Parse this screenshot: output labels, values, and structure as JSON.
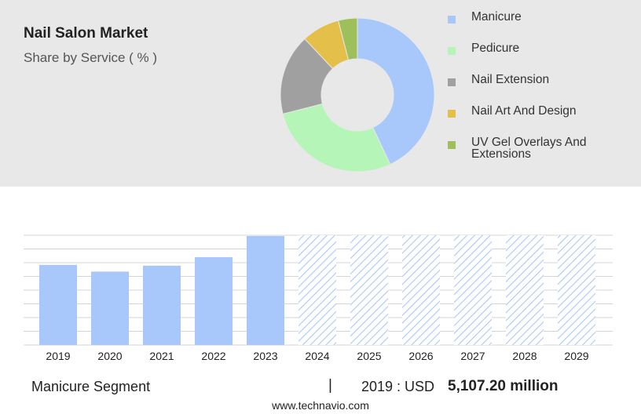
{
  "header": {
    "title": "Nail Salon Market",
    "subtitle": "Share by Service ( % )"
  },
  "chart_data": [
    {
      "type": "pie",
      "categories": [
        "Manicure",
        "Pedicure",
        "Nail Extension",
        "Nail Art And Design",
        "UV Gel Overlays And Extensions"
      ],
      "values": [
        43,
        28,
        17,
        8,
        4
      ],
      "colors": [
        "#a8c8fb",
        "#b6f5b8",
        "#a0a0a0",
        "#e4c04a",
        "#9ec05a"
      ],
      "legend_position": "right"
    },
    {
      "type": "bar",
      "categories": [
        "2019",
        "2020",
        "2021",
        "2022",
        "2023",
        "2024",
        "2025",
        "2026",
        "2027",
        "2028",
        "2029"
      ],
      "values": [
        5107.2,
        4680,
        5060,
        5600,
        6950,
        null,
        null,
        null,
        null,
        null,
        null
      ],
      "forecast": [
        "2024",
        "2025",
        "2026",
        "2027",
        "2028",
        "2029"
      ],
      "ylim": [
        0,
        7000
      ],
      "grid": true,
      "bar_color": "#a8c8fb"
    }
  ],
  "footer": {
    "segment": "Manicure Segment",
    "separator": "|",
    "year_label": "2019 : USD",
    "value_label": "5,107.20 million",
    "site": "www.technavio.com"
  }
}
